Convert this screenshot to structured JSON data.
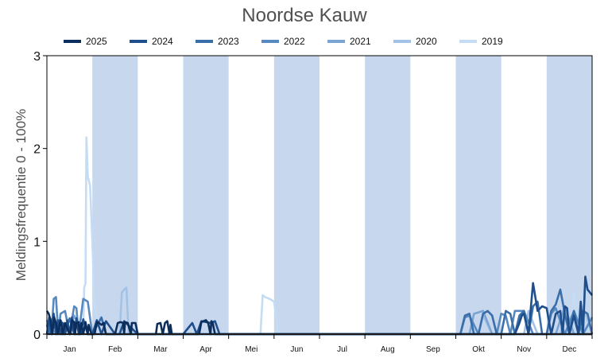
{
  "chart_data": {
    "type": "line",
    "title": "Noordse Kauw",
    "xlabel": "",
    "ylabel": "Meldingsfrequentie 0 - 100%",
    "ylim": [
      0,
      3
    ],
    "yticks": [
      "0",
      "1",
      "2",
      "3"
    ],
    "months": [
      "Jan",
      "Feb",
      "Mar",
      "Apr",
      "Mei",
      "Jun",
      "Jul",
      "Aug",
      "Sep",
      "Okt",
      "Nov",
      "Dec"
    ],
    "shaded_months": [
      "Feb",
      "Apr",
      "Jun",
      "Aug",
      "Okt",
      "Dec"
    ],
    "x_unit": "month (0 = start of Jan, 12 = end of Dec)",
    "grid": false,
    "legend_position": "top",
    "colors": {
      "shade": "#c7d7ee",
      "axis": "#000000",
      "zero_line": "#1a1a1a"
    },
    "series": [
      {
        "name": "2025",
        "color": "#0b2e5c",
        "x": [
          0.0,
          0.04,
          0.08,
          0.12,
          0.16,
          0.2,
          0.24,
          0.3,
          0.35,
          0.4,
          0.5,
          0.52,
          0.55,
          0.6,
          0.62,
          0.65,
          0.7,
          0.72,
          0.76,
          0.8,
          0.85,
          0.9,
          0.92,
          0.98,
          1.05,
          1.1,
          1.15,
          1.2,
          1.25,
          1.3,
          1.35,
          1.42,
          1.5,
          1.56,
          1.62,
          1.68,
          1.7,
          1.72,
          1.78,
          1.85,
          1.87,
          1.9,
          1.95,
          2.0,
          2.1,
          2.15,
          2.2,
          2.4,
          2.43,
          2.5,
          2.55,
          2.6,
          2.65,
          2.7,
          2.72,
          2.75,
          2.8,
          2.85,
          3.0,
          3.05,
          3.1,
          3.15,
          3.2,
          3.25,
          3.3,
          3.35,
          3.4,
          3.5,
          3.55,
          3.6,
          3.62,
          3.65,
          3.7,
          3.75,
          3.8,
          3.85,
          3.9,
          4.0,
          12.0
        ],
        "y": [
          0.25,
          0.22,
          0.15,
          0.0,
          0.18,
          0.12,
          0.0,
          0.15,
          0.0,
          0.12,
          0.0,
          0.0,
          0.15,
          0.13,
          0.0,
          0.12,
          0.13,
          0.0,
          0.12,
          0.0,
          0.13,
          0.0,
          0.1,
          0.0,
          0.0,
          0.13,
          0.12,
          0.1,
          0.12,
          0.0,
          0.0,
          0.0,
          0.0,
          0.12,
          0.13,
          0.12,
          0.0,
          0.13,
          0.12,
          0.0,
          0.12,
          0.12,
          0.12,
          0.0,
          0.0,
          0.0,
          0.0,
          0.0,
          0.11,
          0.12,
          0.0,
          0.12,
          0.14,
          0.0,
          0.1,
          0.0,
          0.0,
          0.0,
          0.0,
          0.0,
          0.0,
          0.0,
          0.0,
          0.0,
          0.0,
          0.0,
          0.13,
          0.15,
          0.12,
          0.0,
          0.14,
          0.12,
          0.0,
          0.0,
          0.0,
          0.0,
          0.0,
          0.0,
          0.0
        ]
      },
      {
        "name": "2024",
        "color": "#1f4e8c",
        "x": [
          0.0,
          0.05,
          0.1,
          0.15,
          0.2,
          0.25,
          0.3,
          0.35,
          0.4,
          0.45,
          0.5,
          0.55,
          0.6,
          0.65,
          0.7,
          0.75,
          0.8,
          0.9,
          1.0,
          1.1,
          1.2,
          1.3,
          1.5,
          1.6,
          1.7,
          2.0,
          2.5,
          3.0,
          3.2,
          3.3,
          3.4,
          3.5,
          3.6,
          3.7,
          3.8,
          4.0,
          9.0,
          9.2,
          9.3,
          9.4,
          9.5,
          9.6,
          9.7,
          9.8,
          10.0,
          10.1,
          10.2,
          10.3,
          10.4,
          10.45,
          10.5,
          10.6,
          10.7,
          10.8,
          10.9,
          11.0,
          11.1,
          11.2,
          11.3,
          11.35,
          11.4,
          11.45,
          11.5,
          11.6,
          11.7,
          11.75,
          11.8,
          11.85,
          11.9,
          11.95,
          12.0
        ],
        "y": [
          0.0,
          0.18,
          0.0,
          0.22,
          0.0,
          0.15,
          0.0,
          0.12,
          0.0,
          0.15,
          0.0,
          0.18,
          0.0,
          0.17,
          0.0,
          0.0,
          0.16,
          0.0,
          0.0,
          0.15,
          0.0,
          0.14,
          0.0,
          0.0,
          0.14,
          0.0,
          0.0,
          0.0,
          0.12,
          0.0,
          0.14,
          0.13,
          0.12,
          0.14,
          0.0,
          0.0,
          0.0,
          0.0,
          0.0,
          0.0,
          0.0,
          0.0,
          0.0,
          0.0,
          0.0,
          0.0,
          0.0,
          0.0,
          0.12,
          0.2,
          0.22,
          0.0,
          0.55,
          0.25,
          0.3,
          0.28,
          0.0,
          0.22,
          0.25,
          0.0,
          0.3,
          0.28,
          0.0,
          0.2,
          0.0,
          0.35,
          0.0,
          0.62,
          0.48,
          0.45,
          0.42
        ]
      },
      {
        "name": "2023",
        "color": "#3a6ea8",
        "x": [
          0.0,
          0.05,
          0.1,
          0.15,
          0.2,
          0.25,
          0.3,
          0.4,
          0.5,
          0.6,
          0.7,
          0.8,
          0.9,
          1.0,
          1.2,
          1.3,
          1.4,
          2.0,
          3.0,
          3.5,
          4.0,
          9.0,
          9.1,
          9.2,
          9.3,
          9.4,
          9.5,
          9.6,
          9.7,
          9.8,
          9.9,
          10.0,
          10.1,
          10.2,
          10.3,
          10.4,
          10.5,
          10.6,
          10.7,
          10.8,
          10.9,
          11.0,
          11.1,
          11.2,
          11.3,
          11.4,
          11.5,
          11.6,
          11.7,
          11.8,
          11.9,
          12.0
        ],
        "y": [
          0.1,
          0.0,
          0.15,
          0.18,
          0.0,
          0.12,
          0.0,
          0.0,
          0.17,
          0.0,
          0.0,
          0.15,
          0.0,
          0.0,
          0.18,
          0.0,
          0.0,
          0.0,
          0.0,
          0.0,
          0.0,
          0.0,
          0.0,
          0.2,
          0.22,
          0.0,
          0.0,
          0.22,
          0.25,
          0.2,
          0.0,
          0.0,
          0.25,
          0.22,
          0.0,
          0.2,
          0.25,
          0.0,
          0.3,
          0.35,
          0.0,
          0.0,
          0.25,
          0.32,
          0.48,
          0.22,
          0.0,
          0.25,
          0.0,
          0.25,
          0.22,
          0.0
        ]
      },
      {
        "name": "2022",
        "color": "#5789c0",
        "x": [
          0.0,
          0.1,
          0.15,
          0.2,
          0.25,
          0.3,
          0.4,
          0.5,
          0.6,
          0.65,
          0.7,
          0.8,
          0.9,
          1.0,
          1.5,
          2.0,
          3.0,
          4.0,
          9.0,
          9.1,
          9.2,
          9.3,
          9.5,
          9.7,
          9.9,
          10.0,
          10.1,
          10.2,
          10.3,
          10.5,
          10.7,
          10.9,
          11.0,
          11.1,
          11.2,
          11.4,
          11.6,
          11.8,
          12.0
        ],
        "y": [
          0.15,
          0.0,
          0.38,
          0.4,
          0.0,
          0.22,
          0.25,
          0.0,
          0.3,
          0.28,
          0.0,
          0.38,
          0.35,
          0.0,
          0.0,
          0.0,
          0.0,
          0.0,
          0.0,
          0.0,
          0.18,
          0.2,
          0.0,
          0.0,
          0.0,
          0.22,
          0.2,
          0.0,
          0.25,
          0.25,
          0.0,
          0.0,
          0.0,
          0.22,
          0.28,
          0.0,
          0.25,
          0.0,
          0.18
        ]
      },
      {
        "name": "2021",
        "color": "#7aa5d3",
        "x": [
          0.0,
          0.2,
          0.3,
          0.5,
          0.6,
          0.8,
          1.0,
          1.5,
          2.0,
          3.0,
          4.0,
          9.0,
          9.3,
          9.4,
          9.6,
          9.8,
          10.0,
          10.3,
          10.5,
          10.7,
          11.0,
          11.2,
          11.4,
          11.6,
          11.8,
          12.0
        ],
        "y": [
          0.12,
          0.0,
          0.15,
          0.0,
          0.2,
          0.0,
          0.0,
          0.0,
          0.0,
          0.0,
          0.0,
          0.0,
          0.0,
          0.22,
          0.25,
          0.0,
          0.0,
          0.0,
          0.25,
          0.0,
          0.0,
          0.0,
          0.3,
          0.0,
          0.0,
          0.0
        ]
      },
      {
        "name": "2020",
        "color": "#a3c3e6",
        "x": [
          0.0,
          0.3,
          0.5,
          0.7,
          1.0,
          1.6,
          1.65,
          1.7,
          1.75,
          1.8,
          2.0,
          3.0,
          4.0,
          9.0,
          9.5,
          9.6,
          9.8,
          10.5,
          10.6,
          10.8,
          11.0,
          11.3,
          11.4,
          11.5,
          11.7,
          11.8,
          12.0
        ],
        "y": [
          0.0,
          0.0,
          0.0,
          0.0,
          0.0,
          0.0,
          0.45,
          0.48,
          0.5,
          0.0,
          0.0,
          0.0,
          0.0,
          0.0,
          0.0,
          0.2,
          0.0,
          0.0,
          0.25,
          0.0,
          0.0,
          0.0,
          0.28,
          0.0,
          0.0,
          0.3,
          0.0
        ]
      },
      {
        "name": "2019",
        "color": "#c4dcf4",
        "x": [
          0.0,
          0.6,
          0.8,
          0.82,
          0.85,
          0.87,
          0.9,
          0.95,
          1.0,
          1.05,
          1.1,
          1.15,
          1.2,
          1.3,
          1.5,
          2.0,
          3.0,
          4.0,
          4.7,
          4.75,
          4.8,
          4.9,
          5.0,
          5.1,
          6.0,
          9.0,
          11.0,
          11.5,
          11.6,
          11.7,
          12.0
        ],
        "y": [
          0.0,
          0.0,
          0.0,
          0.5,
          0.55,
          2.12,
          1.7,
          1.6,
          1.0,
          0.3,
          0.2,
          0.0,
          0.0,
          0.0,
          0.0,
          0.0,
          0.0,
          0.0,
          0.0,
          0.42,
          0.4,
          0.38,
          0.35,
          0.0,
          0.0,
          0.0,
          0.0,
          0.0,
          0.45,
          0.0,
          0.0
        ]
      }
    ]
  }
}
